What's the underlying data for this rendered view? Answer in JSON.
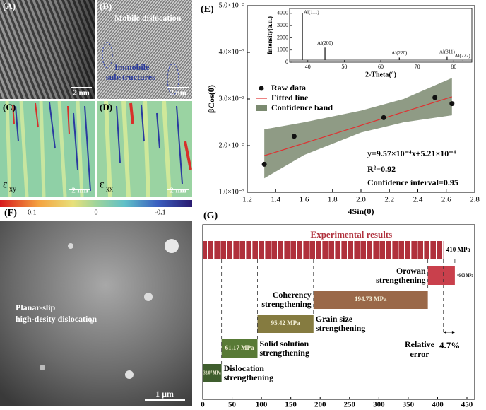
{
  "panels": {
    "A": {
      "label": "(A)",
      "scale": "2 nm"
    },
    "B": {
      "label": "(B)",
      "mobile": "Mobile dislocation",
      "immobile": [
        "Immobile",
        "substructures"
      ],
      "scale": "2 nm"
    },
    "C": {
      "label": "(C)",
      "symbol": "ε",
      "sub": "xy",
      "scale": "2 nm"
    },
    "D": {
      "label": "(D)",
      "symbol": "ε",
      "sub": "xx",
      "scale": "2 nm"
    },
    "colorbar": {
      "lim": [
        0.15,
        -0.15
      ],
      "ticks": [
        0.1,
        0,
        -0.1
      ]
    },
    "E": {
      "label": "(E)"
    },
    "F": {
      "label": "(F)",
      "text": [
        "Planar-slip",
        "high-desity dislocation"
      ],
      "scale": "1 μm"
    },
    "G": {
      "label": "(G)"
    }
  },
  "chart_data": [
    {
      "type": "scatter",
      "xlabel": "4Sin(θ)",
      "ylabel": "βCos(θ)",
      "xlim": [
        1.2,
        2.8
      ],
      "xticks": [
        1.2,
        1.4,
        1.6,
        1.8,
        {
          "value": 2,
          "label": "2.0"
        },
        2.2,
        2.4,
        2.6,
        2.8
      ],
      "ylim": [
        0.001,
        0.005
      ],
      "yticks": [
        {
          "value": 0.001,
          "label": "1.0×10⁻³"
        },
        {
          "value": 0.002,
          "label": "2.0×10⁻³"
        },
        {
          "value": 0.003,
          "label": "3.0×10⁻³"
        },
        {
          "value": 0.004,
          "label": "4.0×10⁻³"
        },
        {
          "value": 0.005,
          "label": "5.0×10⁻³"
        }
      ],
      "series": [
        {
          "name": "Raw data",
          "color": "#111111",
          "x": [
            1.32,
            1.53,
            2.16,
            2.52,
            2.64
          ],
          "values": [
            0.0016,
            0.0022,
            0.0026,
            0.00303,
            0.0029
          ]
        },
        {
          "name": "Fitted line",
          "color": "#e03030",
          "x": [
            1.32,
            2.64
          ],
          "values": [
            0.001784,
            0.003047
          ]
        }
      ],
      "band": {
        "name": "Confidence band",
        "color": "#7b8a70",
        "x": [
          1.32,
          1.6,
          2.0,
          2.3,
          2.64
        ],
        "lower": [
          0.0013,
          0.0018,
          0.00228,
          0.0025,
          0.00265
        ],
        "upper": [
          0.00235,
          0.0025,
          0.00275,
          0.003,
          0.00345
        ]
      },
      "annotations": [
        "y=9.57×10⁻⁴x+5.21×10⁻⁴",
        "R²=0.92",
        "Confidence interval=0.95"
      ]
    },
    {
      "type": "line",
      "xlabel": "2-Theta(°)",
      "ylabel": "Intensity(a.u.)",
      "xlim": [
        35,
        85
      ],
      "xticks": [
        40,
        50,
        60,
        70,
        80
      ],
      "ylim": [
        0,
        4400
      ],
      "yticks": [
        0,
        1000,
        2000,
        3000,
        4000
      ],
      "color": "#222222",
      "peaks": {
        "x": [
          38.5,
          44.7,
          65.1,
          78.2,
          82.4
        ],
        "values": [
          4000,
          1200,
          380,
          480,
          150
        ],
        "labels": [
          "Al(111)",
          "Al(200)",
          "Al(220)",
          "Al(311)",
          "Al(222)"
        ]
      }
    },
    {
      "type": "bar",
      "orientation": "horizontal",
      "stacked": true,
      "xlim": [
        0,
        450
      ],
      "xticks": [
        0,
        50,
        100,
        150,
        200,
        250,
        300,
        350,
        400,
        450
      ],
      "categories": [
        [
          "Dislocation",
          "strengthening"
        ],
        [
          "Solid solution",
          "strengthening"
        ],
        [
          "Grain size",
          "strengthening"
        ],
        [
          "Coherency",
          "strengthening"
        ],
        [
          "Orowan",
          "strengthening"
        ]
      ],
      "values": [
        32.07,
        61.17,
        95.42,
        194.73,
        46.03
      ],
      "value_labels": [
        "32.07 MPa",
        "61.17 MPa",
        "95.42 MPa",
        "194.73 MPa",
        "46.03 MPa"
      ],
      "colors": [
        "#3f5e2e",
        "#587a36",
        "#857b40",
        "#9a6848",
        "#c9404c"
      ],
      "experimental": {
        "name": "Experimental results",
        "value": 410,
        "value_label": "410 MPa",
        "color": "#b0303c"
      },
      "relative_error": 4.7,
      "relative_error_label": "4.7%",
      "relative_error_text": [
        "Relative",
        "error"
      ]
    }
  ]
}
